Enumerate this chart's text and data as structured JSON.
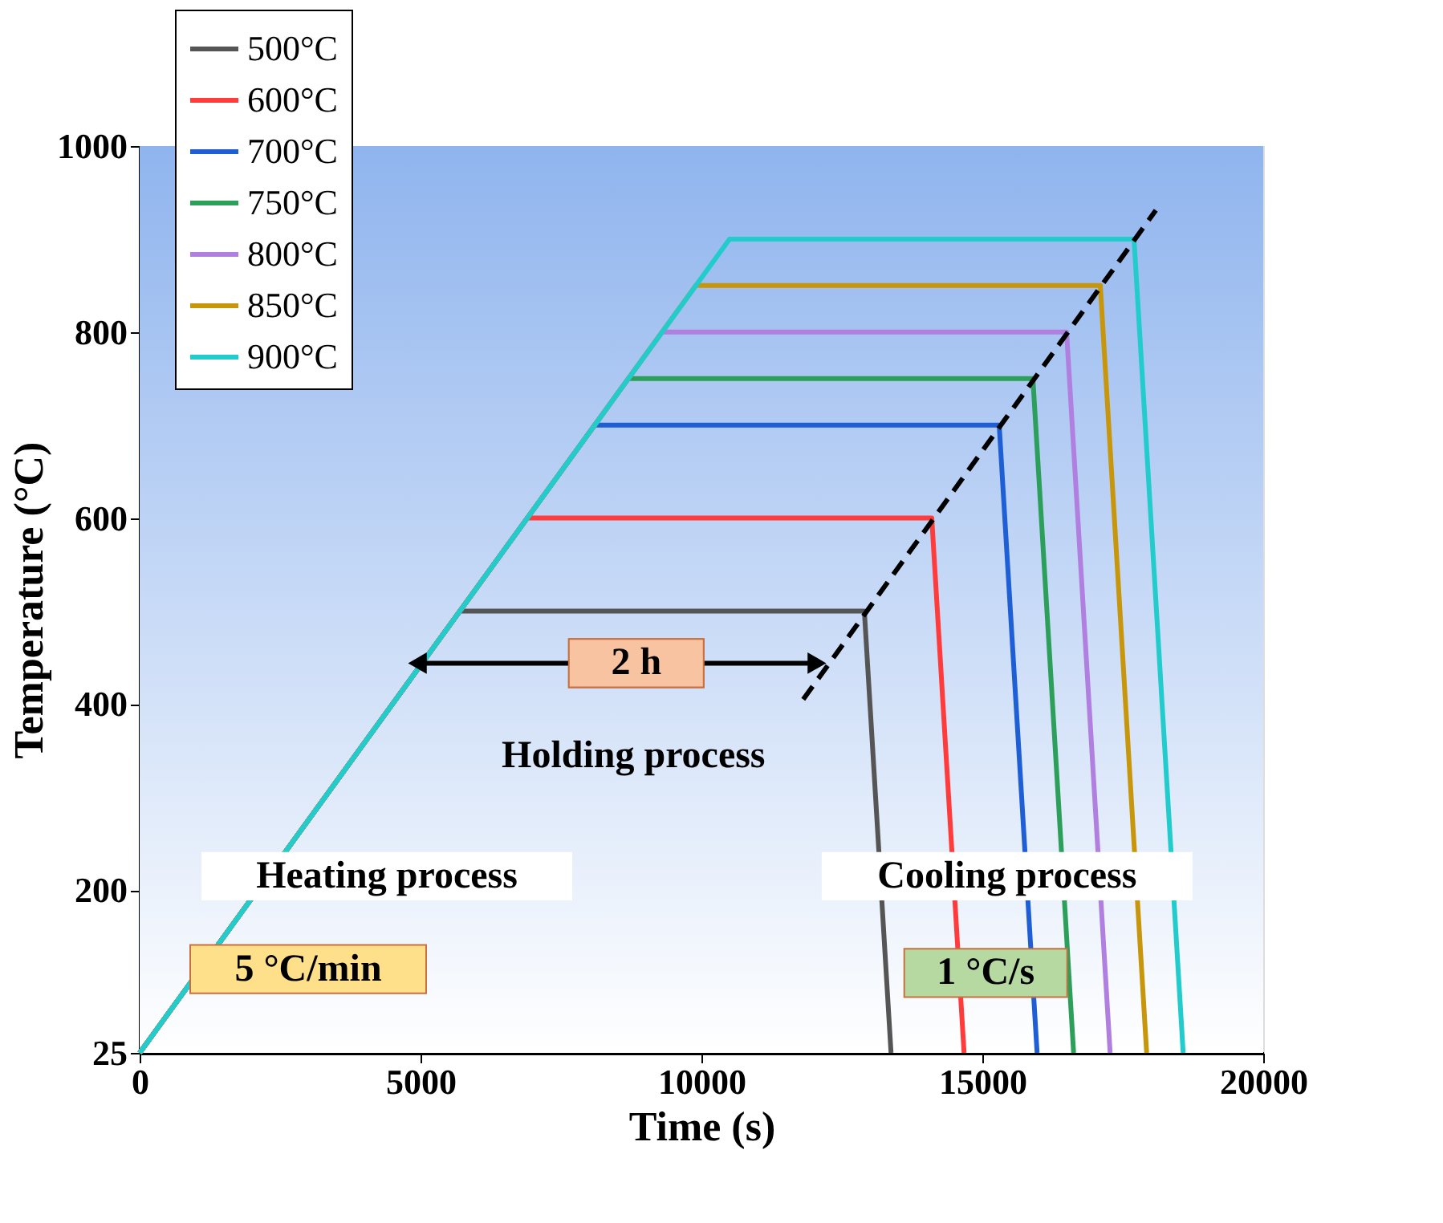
{
  "chart_data": {
    "type": "line",
    "xlabel": "Time (s)",
    "ylabel": "Temperature (°C)",
    "xlim": [
      0,
      20000
    ],
    "xticks": [
      0,
      5000,
      10000,
      15000,
      20000
    ],
    "ylim": [
      25,
      1000
    ],
    "yticks": [
      25,
      200,
      400,
      600,
      800,
      1000
    ],
    "legend": "top left",
    "line_style": "solid",
    "marker": "none",
    "series": [
      {
        "name": "500°C",
        "color": "#555555",
        "x": [
          0,
          5700,
          12900,
          13375
        ],
        "values": [
          25,
          500,
          500,
          25
        ]
      },
      {
        "name": "600°C",
        "color": "#ff3b3b",
        "x": [
          0,
          6900,
          14100,
          14675
        ],
        "values": [
          25,
          600,
          600,
          25
        ]
      },
      {
        "name": "700°C",
        "color": "#1f5fd6",
        "x": [
          0,
          8100,
          15300,
          15975
        ],
        "values": [
          25,
          700,
          700,
          25
        ]
      },
      {
        "name": "750°C",
        "color": "#2ca05a",
        "x": [
          0,
          8700,
          15900,
          16625
        ],
        "values": [
          25,
          750,
          750,
          25
        ]
      },
      {
        "name": "800°C",
        "color": "#b07fe0",
        "x": [
          0,
          9300,
          16500,
          17275
        ],
        "values": [
          25,
          800,
          800,
          25
        ]
      },
      {
        "name": "850°C",
        "color": "#c8960a",
        "x": [
          0,
          9900,
          17100,
          17925
        ],
        "values": [
          25,
          850,
          850,
          25
        ]
      },
      {
        "name": "900°C",
        "color": "#22cccc",
        "x": [
          0,
          10500,
          17700,
          18575
        ],
        "values": [
          25,
          900,
          900,
          25
        ]
      },
      {
        "color": "#000000",
        "line_style": "dashed",
        "x": [
          11812,
          18088
        ],
        "values": [
          405,
          931
        ]
      }
    ],
    "annotations": [
      "Heating process",
      "5 °C/min",
      "2 h",
      "Holding process",
      "Cooling process",
      "1 °C/s"
    ]
  }
}
